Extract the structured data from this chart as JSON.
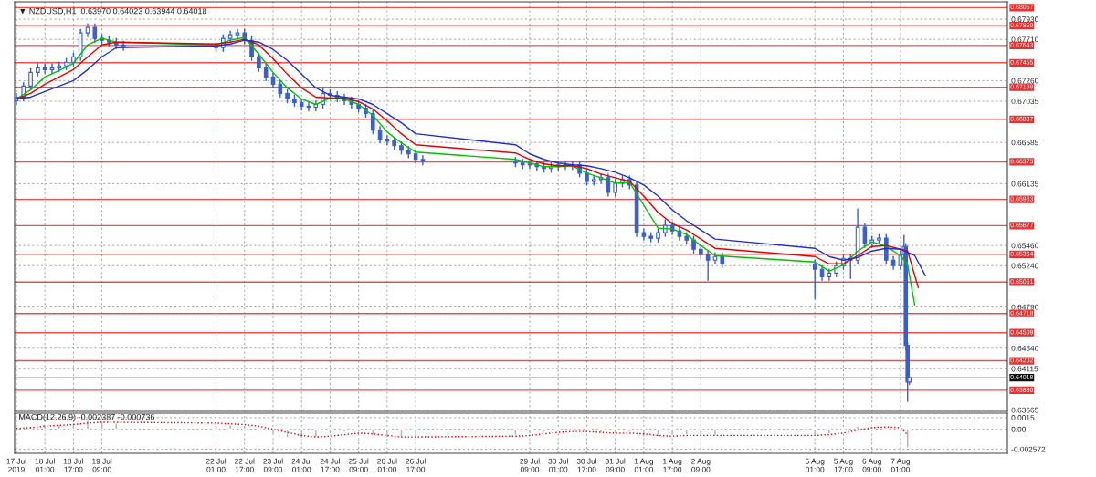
{
  "chart_data": [
    {
      "type": "candlestick",
      "title": "▼ NZDUSD,H1  0.63970 0.64023 0.63944 0.64018",
      "tick_labels": "y",
      "grid": true,
      "x": [
        "2019-07-17T09:00",
        "2019-07-17T13:00",
        "2019-07-17T17:00",
        "2019-07-17T21:00",
        "2019-07-18T01:00",
        "2019-07-18T05:00",
        "2019-07-18T09:00",
        "2019-07-18T13:00",
        "2019-07-18T17:00",
        "2019-07-18T21:00",
        "2019-07-19T01:00",
        "2019-07-19T05:00",
        "2019-07-19T09:00",
        "2019-07-19T13:00",
        "2019-07-19T17:00",
        "2019-07-19T21:00",
        "2019-07-22T01:00",
        "2019-07-22T05:00",
        "2019-07-22T09:00",
        "2019-07-22T13:00",
        "2019-07-22T17:00",
        "2019-07-22T21:00",
        "2019-07-23T01:00",
        "2019-07-23T05:00",
        "2019-07-23T09:00",
        "2019-07-23T13:00",
        "2019-07-23T17:00",
        "2019-07-23T21:00",
        "2019-07-24T01:00",
        "2019-07-24T05:00",
        "2019-07-24T09:00",
        "2019-07-24T13:00",
        "2019-07-24T17:00",
        "2019-07-24T21:00",
        "2019-07-25T01:00",
        "2019-07-25T05:00",
        "2019-07-25T09:00",
        "2019-07-25T13:00",
        "2019-07-25T17:00",
        "2019-07-25T21:00",
        "2019-07-26T01:00",
        "2019-07-26T05:00",
        "2019-07-26T09:00",
        "2019-07-26T13:00",
        "2019-07-26T17:00",
        "2019-07-26T21:00",
        "2019-07-29T01:00",
        "2019-07-29T05:00",
        "2019-07-29T09:00",
        "2019-07-29T13:00",
        "2019-07-29T17:00",
        "2019-07-29T21:00",
        "2019-07-30T01:00",
        "2019-07-30T05:00",
        "2019-07-30T09:00",
        "2019-07-30T13:00",
        "2019-07-30T17:00",
        "2019-07-30T21:00",
        "2019-07-31T01:00",
        "2019-07-31T05:00",
        "2019-07-31T09:00",
        "2019-07-31T13:00",
        "2019-07-31T17:00",
        "2019-07-31T21:00",
        "2019-08-01T01:00",
        "2019-08-01T05:00",
        "2019-08-01T09:00",
        "2019-08-01T13:00",
        "2019-08-01T17:00",
        "2019-08-01T21:00",
        "2019-08-02T01:00",
        "2019-08-02T05:00",
        "2019-08-02T09:00",
        "2019-08-02T13:00",
        "2019-08-02T17:00",
        "2019-08-02T21:00",
        "2019-08-05T01:00",
        "2019-08-05T05:00",
        "2019-08-05T09:00",
        "2019-08-05T13:00",
        "2019-08-05T17:00",
        "2019-08-05T21:00",
        "2019-08-06T01:00",
        "2019-08-06T05:00",
        "2019-08-06T09:00",
        "2019-08-06T13:00",
        "2019-08-06T17:00",
        "2019-08-06T21:00",
        "2019-08-07T01:00",
        "2019-08-07T03:00",
        "2019-08-07T04:00",
        "2019-08-07T05:00",
        "2019-08-07T06:00"
      ],
      "ohlc": [
        [
          0.6704,
          0.6712,
          0.67,
          0.6708
        ],
        [
          0.6708,
          0.6724,
          0.6704,
          0.672
        ],
        [
          0.672,
          0.6739,
          0.6716,
          0.6735
        ],
        [
          0.6735,
          0.6744,
          0.6731,
          0.674
        ],
        [
          0.674,
          0.6744,
          0.6734,
          0.6738
        ],
        [
          0.6738,
          0.6744,
          0.6734,
          0.674
        ],
        [
          0.674,
          0.6746,
          0.6736,
          0.6742
        ],
        [
          0.6742,
          0.675,
          0.6738,
          0.6746
        ],
        [
          0.6746,
          0.6756,
          0.6742,
          0.6752
        ],
        [
          0.6752,
          0.6782,
          0.6748,
          0.6778
        ],
        [
          0.6778,
          0.6788,
          0.6774,
          0.6784
        ],
        [
          0.6784,
          0.6788,
          0.6768,
          0.6772
        ],
        [
          0.6772,
          0.6776,
          0.6766,
          0.677
        ],
        [
          0.677,
          0.6774,
          0.6764,
          0.6768
        ],
        [
          0.6768,
          0.6772,
          0.6761,
          0.6765
        ],
        [
          0.6765,
          0.6769,
          0.6759,
          0.6763
        ],
        [
          0.6763,
          0.6767,
          0.6758,
          0.6762
        ],
        [
          0.6762,
          0.6776,
          0.6758,
          0.6772
        ],
        [
          0.6772,
          0.678,
          0.6768,
          0.6776
        ],
        [
          0.6776,
          0.6782,
          0.6772,
          0.6778
        ],
        [
          0.6778,
          0.6782,
          0.6766,
          0.677
        ],
        [
          0.677,
          0.6774,
          0.6748,
          0.6752
        ],
        [
          0.6752,
          0.6756,
          0.6736,
          0.674
        ],
        [
          0.674,
          0.6744,
          0.6726,
          0.673
        ],
        [
          0.673,
          0.6734,
          0.6718,
          0.6722
        ],
        [
          0.6722,
          0.6726,
          0.6708,
          0.6712
        ],
        [
          0.6712,
          0.6716,
          0.6702,
          0.6706
        ],
        [
          0.6706,
          0.671,
          0.6698,
          0.6702
        ],
        [
          0.6702,
          0.6706,
          0.6694,
          0.6698
        ],
        [
          0.6698,
          0.6702,
          0.6693,
          0.6697
        ],
        [
          0.6697,
          0.6704,
          0.6693,
          0.67
        ],
        [
          0.67,
          0.6718,
          0.6696,
          0.6712
        ],
        [
          0.6712,
          0.6716,
          0.6706,
          0.671
        ],
        [
          0.671,
          0.6714,
          0.6703,
          0.6707
        ],
        [
          0.6707,
          0.6711,
          0.67,
          0.6704
        ],
        [
          0.6704,
          0.6708,
          0.6696,
          0.67
        ],
        [
          0.67,
          0.6704,
          0.6692,
          0.6696
        ],
        [
          0.6696,
          0.67,
          0.6686,
          0.669
        ],
        [
          0.669,
          0.6694,
          0.6668,
          0.6672
        ],
        [
          0.6672,
          0.6676,
          0.6658,
          0.6662
        ],
        [
          0.6662,
          0.6666,
          0.6656,
          0.666
        ],
        [
          0.666,
          0.6664,
          0.6651,
          0.6655
        ],
        [
          0.6655,
          0.6659,
          0.6646,
          0.665
        ],
        [
          0.665,
          0.6654,
          0.6642,
          0.6646
        ],
        [
          0.6646,
          0.665,
          0.6636,
          0.664
        ],
        [
          0.664,
          0.6644,
          0.6634,
          0.6638
        ],
        [
          0.6638,
          0.6642,
          0.6632,
          0.6636
        ],
        [
          0.6636,
          0.664,
          0.663,
          0.6634
        ],
        [
          0.6634,
          0.6638,
          0.663,
          0.6635
        ],
        [
          0.6635,
          0.6638,
          0.6628,
          0.6632
        ],
        [
          0.6632,
          0.6636,
          0.6626,
          0.663
        ],
        [
          0.663,
          0.6636,
          0.6626,
          0.6632
        ],
        [
          0.6632,
          0.6638,
          0.6628,
          0.6634
        ],
        [
          0.6634,
          0.6638,
          0.6629,
          0.6633
        ],
        [
          0.6633,
          0.6638,
          0.6629,
          0.6634
        ],
        [
          0.6634,
          0.6638,
          0.6621,
          0.6625
        ],
        [
          0.6625,
          0.6629,
          0.6612,
          0.6616
        ],
        [
          0.6616,
          0.6622,
          0.6612,
          0.6618
        ],
        [
          0.6618,
          0.6624,
          0.6614,
          0.662
        ],
        [
          0.662,
          0.6624,
          0.66,
          0.6604
        ],
        [
          0.6604,
          0.6618,
          0.66,
          0.6614
        ],
        [
          0.6614,
          0.6622,
          0.661,
          0.6618
        ],
        [
          0.6618,
          0.6622,
          0.6608,
          0.6612
        ],
        [
          0.6612,
          0.6616,
          0.6556,
          0.656
        ],
        [
          0.656,
          0.6564,
          0.6552,
          0.6556
        ],
        [
          0.6556,
          0.656,
          0.655,
          0.6554
        ],
        [
          0.6554,
          0.6564,
          0.655,
          0.656
        ],
        [
          0.656,
          0.6574,
          0.6556,
          0.6568
        ],
        [
          0.6568,
          0.6572,
          0.6558,
          0.6562
        ],
        [
          0.6562,
          0.6566,
          0.6552,
          0.6556
        ],
        [
          0.6556,
          0.656,
          0.6548,
          0.6552
        ],
        [
          0.6552,
          0.6556,
          0.6538,
          0.6542
        ],
        [
          0.6542,
          0.6546,
          0.6532,
          0.6536
        ],
        [
          0.6536,
          0.654,
          0.6508,
          0.653
        ],
        [
          0.653,
          0.6538,
          0.6526,
          0.6534
        ],
        [
          0.6534,
          0.6538,
          0.6522,
          0.6526
        ],
        [
          0.6526,
          0.653,
          0.6488,
          0.652
        ],
        [
          0.652,
          0.6524,
          0.6508,
          0.6512
        ],
        [
          0.6512,
          0.652,
          0.6508,
          0.6516
        ],
        [
          0.6516,
          0.6528,
          0.6512,
          0.6524
        ],
        [
          0.6524,
          0.6536,
          0.652,
          0.6532
        ],
        [
          0.6532,
          0.6536,
          0.651,
          0.653
        ],
        [
          0.653,
          0.6586,
          0.6526,
          0.6566
        ],
        [
          0.6566,
          0.657,
          0.6544,
          0.6548
        ],
        [
          0.6548,
          0.6556,
          0.6544,
          0.6552
        ],
        [
          0.6552,
          0.6558,
          0.6548,
          0.6554
        ],
        [
          0.6554,
          0.6558,
          0.6526,
          0.653
        ],
        [
          0.653,
          0.6534,
          0.652,
          0.6524
        ],
        [
          0.6524,
          0.654,
          0.652,
          0.6536
        ],
        [
          0.6536,
          0.6557,
          0.6532,
          0.6545
        ],
        [
          0.6545,
          0.6548,
          0.6432,
          0.6437
        ],
        [
          0.6437,
          0.644,
          0.6376,
          0.6397
        ],
        [
          0.6397,
          0.64023,
          0.63944,
          0.64018
        ]
      ],
      "series": [
        {
          "type": "line",
          "color": "#00c000",
          "x": [
            "2019-07-17T09:00",
            "2019-07-17T17:00",
            "2019-07-18T01:00",
            "2019-07-18T09:00",
            "2019-07-18T17:00",
            "2019-07-19T01:00",
            "2019-07-19T09:00",
            "2019-07-19T17:00",
            "2019-07-22T01:00",
            "2019-07-22T09:00",
            "2019-07-22T17:00",
            "2019-07-23T01:00",
            "2019-07-23T09:00",
            "2019-07-23T17:00",
            "2019-07-24T01:00",
            "2019-07-24T09:00",
            "2019-07-24T17:00",
            "2019-07-25T01:00",
            "2019-07-25T09:00",
            "2019-07-25T17:00",
            "2019-07-26T01:00",
            "2019-07-26T09:00",
            "2019-07-26T17:00",
            "2019-07-29T01:00",
            "2019-07-29T09:00",
            "2019-07-29T17:00",
            "2019-07-30T01:00",
            "2019-07-30T09:00",
            "2019-07-30T17:00",
            "2019-07-31T01:00",
            "2019-07-31T09:00",
            "2019-07-31T17:00",
            "2019-08-01T01:00",
            "2019-08-01T09:00",
            "2019-08-01T17:00",
            "2019-08-02T01:00",
            "2019-08-02T09:00",
            "2019-08-02T17:00",
            "2019-08-05T01:00",
            "2019-08-05T09:00",
            "2019-08-05T17:00",
            "2019-08-06T01:00",
            "2019-08-06T09:00",
            "2019-08-06T17:00",
            "2019-08-07T01:00",
            "2019-08-07T05:00",
            "2019-08-07T09:00"
          ],
          "values": [
            0.6706,
            0.6716,
            0.673,
            0.6737,
            0.6745,
            0.6765,
            0.6772,
            0.6768,
            0.6765,
            0.677,
            0.6773,
            0.6755,
            0.6735,
            0.6718,
            0.6706,
            0.67,
            0.6707,
            0.6706,
            0.67,
            0.6688,
            0.667,
            0.6658,
            0.6648,
            0.664,
            0.6636,
            0.6632,
            0.6632,
            0.6633,
            0.6625,
            0.662,
            0.6614,
            0.6615,
            0.659,
            0.6565,
            0.6564,
            0.6558,
            0.6546,
            0.6535,
            0.6528,
            0.6518,
            0.6525,
            0.654,
            0.655,
            0.6545,
            0.6535,
            0.6525,
            0.6481
          ]
        },
        {
          "type": "line",
          "color": "#e00000",
          "x": [
            "2019-07-17T09:00",
            "2019-07-17T17:00",
            "2019-07-18T01:00",
            "2019-07-18T09:00",
            "2019-07-18T17:00",
            "2019-07-19T01:00",
            "2019-07-19T09:00",
            "2019-07-19T17:00",
            "2019-07-22T01:00",
            "2019-07-22T09:00",
            "2019-07-22T17:00",
            "2019-07-23T01:00",
            "2019-07-23T09:00",
            "2019-07-23T17:00",
            "2019-07-24T01:00",
            "2019-07-24T09:00",
            "2019-07-24T17:00",
            "2019-07-25T01:00",
            "2019-07-25T09:00",
            "2019-07-25T17:00",
            "2019-07-26T01:00",
            "2019-07-26T09:00",
            "2019-07-26T17:00",
            "2019-07-29T01:00",
            "2019-07-29T09:00",
            "2019-07-29T17:00",
            "2019-07-30T01:00",
            "2019-07-30T09:00",
            "2019-07-30T17:00",
            "2019-07-31T01:00",
            "2019-07-31T09:00",
            "2019-07-31T17:00",
            "2019-08-01T01:00",
            "2019-08-01T09:00",
            "2019-08-01T17:00",
            "2019-08-02T01:00",
            "2019-08-02T09:00",
            "2019-08-02T17:00",
            "2019-08-05T01:00",
            "2019-08-05T09:00",
            "2019-08-05T17:00",
            "2019-08-06T01:00",
            "2019-08-06T09:00",
            "2019-08-06T17:00",
            "2019-08-07T01:00",
            "2019-08-07T05:00",
            "2019-08-07T11:00"
          ],
          "values": [
            0.6706,
            0.6712,
            0.6722,
            0.673,
            0.6738,
            0.6752,
            0.6765,
            0.6768,
            0.6766,
            0.6768,
            0.6771,
            0.6765,
            0.675,
            0.6733,
            0.6718,
            0.6708,
            0.6707,
            0.6707,
            0.6703,
            0.6695,
            0.6682,
            0.6668,
            0.6656,
            0.6647,
            0.664,
            0.6635,
            0.6633,
            0.6633,
            0.663,
            0.6624,
            0.662,
            0.6616,
            0.66,
            0.6582,
            0.657,
            0.6563,
            0.6553,
            0.6543,
            0.6534,
            0.6526,
            0.6526,
            0.6535,
            0.6545,
            0.6546,
            0.6542,
            0.654,
            0.65
          ]
        },
        {
          "type": "line",
          "color": "#2030d0",
          "x": [
            "2019-07-17T09:00",
            "2019-07-17T17:00",
            "2019-07-18T01:00",
            "2019-07-18T09:00",
            "2019-07-18T17:00",
            "2019-07-19T01:00",
            "2019-07-19T09:00",
            "2019-07-19T17:00",
            "2019-07-22T01:00",
            "2019-07-22T09:00",
            "2019-07-22T17:00",
            "2019-07-23T01:00",
            "2019-07-23T09:00",
            "2019-07-23T17:00",
            "2019-07-24T01:00",
            "2019-07-24T09:00",
            "2019-07-24T17:00",
            "2019-07-25T01:00",
            "2019-07-25T09:00",
            "2019-07-25T17:00",
            "2019-07-26T01:00",
            "2019-07-26T09:00",
            "2019-07-26T17:00",
            "2019-07-29T01:00",
            "2019-07-29T09:00",
            "2019-07-29T17:00",
            "2019-07-30T01:00",
            "2019-07-30T09:00",
            "2019-07-30T17:00",
            "2019-07-31T01:00",
            "2019-07-31T09:00",
            "2019-07-31T17:00",
            "2019-08-01T01:00",
            "2019-08-01T09:00",
            "2019-08-01T17:00",
            "2019-08-02T01:00",
            "2019-08-02T09:00",
            "2019-08-02T17:00",
            "2019-08-05T01:00",
            "2019-08-05T09:00",
            "2019-08-05T17:00",
            "2019-08-06T01:00",
            "2019-08-06T09:00",
            "2019-08-06T17:00",
            "2019-08-07T01:00",
            "2019-08-07T09:00",
            "2019-08-07T15:00"
          ],
          "values": [
            0.6706,
            0.6708,
            0.6714,
            0.672,
            0.6726,
            0.6738,
            0.6752,
            0.6762,
            0.6764,
            0.6766,
            0.677,
            0.6768,
            0.676,
            0.6748,
            0.6733,
            0.6718,
            0.671,
            0.6708,
            0.6706,
            0.67,
            0.669,
            0.668,
            0.6668,
            0.6656,
            0.6646,
            0.664,
            0.6636,
            0.6634,
            0.6633,
            0.663,
            0.6626,
            0.662,
            0.6612,
            0.66,
            0.6585,
            0.6573,
            0.6563,
            0.6553,
            0.6543,
            0.6534,
            0.653,
            0.6533,
            0.654,
            0.6543,
            0.6542,
            0.6535,
            0.6513
          ]
        }
      ],
      "xlim": [
        "2019-07-17T08:00",
        "2019-08-09T13:00"
      ],
      "xticks": [
        {
          "value": "2019-07-17T09:00",
          "label": null
        },
        {
          "value": "2019-07-18T01:00",
          "label": null
        },
        {
          "value": "2019-07-18T17:00",
          "label": null
        },
        {
          "value": "2019-07-19T09:00",
          "label": null
        },
        {
          "value": "2019-07-22T01:00",
          "label": null
        },
        {
          "value": "2019-07-22T17:00",
          "label": null
        },
        {
          "value": "2019-07-23T09:00",
          "label": null
        },
        {
          "value": "2019-07-24T01:00",
          "label": null
        },
        {
          "value": "2019-07-24T17:00",
          "label": null
        },
        {
          "value": "2019-07-25T09:00",
          "label": null
        },
        {
          "value": "2019-07-26T01:00",
          "label": null
        },
        {
          "value": "2019-07-26T17:00",
          "label": null
        },
        {
          "value": "2019-07-29T09:00",
          "label": null
        },
        {
          "value": "2019-07-30T01:00",
          "label": null
        },
        {
          "value": "2019-07-30T17:00",
          "label": null
        },
        {
          "value": "2019-07-31T09:00",
          "label": null
        },
        {
          "value": "2019-08-01T01:00",
          "label": null
        },
        {
          "value": "2019-08-01T17:00",
          "label": null
        },
        {
          "value": "2019-08-02T09:00",
          "label": null
        },
        {
          "value": "2019-08-05T01:00",
          "label": null
        },
        {
          "value": "2019-08-05T17:00",
          "label": null
        },
        {
          "value": "2019-08-06T09:00",
          "label": null
        },
        {
          "value": "2019-08-07T01:00",
          "label": null
        }
      ],
      "ylim": [
        0.6365,
        0.6812
      ],
      "yticks": [
        {
          "value": 0.6793,
          "label": "0.67930"
        },
        {
          "value": 0.6771,
          "label": "0.67710"
        },
        {
          "value": 0.6726,
          "label": "0.67260"
        },
        0.67035,
        0.66585,
        0.66135,
        {
          "value": 0.6546,
          "label": "0.65460"
        },
        {
          "value": 0.6524,
          "label": "0.65240"
        },
        {
          "value": 0.6479,
          "label": "0.64790"
        },
        {
          "value": 0.6434,
          "label": "0.64340"
        },
        0.64115,
        0.63665
      ],
      "ref_lines": [
        {
          "axis": "y",
          "value": 0.68057,
          "label": "0.68057",
          "color": "#e83030"
        },
        {
          "axis": "y",
          "value": 0.67859,
          "label": "0.67859",
          "color": "#e83030"
        },
        {
          "axis": "y",
          "value": 0.67643,
          "label": "0.67643",
          "color": "#e83030"
        },
        {
          "axis": "y",
          "value": 0.67455,
          "label": "0.67455",
          "color": "#e83030"
        },
        {
          "axis": "y",
          "value": 0.67188,
          "label": "0.67188",
          "color": "#e83030"
        },
        {
          "axis": "y",
          "value": 0.66837,
          "label": "0.66837",
          "color": "#e83030"
        },
        {
          "axis": "y",
          "value": 0.66373,
          "label": "0.66373",
          "color": "#e83030"
        },
        {
          "axis": "y",
          "value": 0.65963,
          "label": "0.65963",
          "color": "#e83030"
        },
        {
          "axis": "y",
          "value": 0.65677,
          "label": "0.65677",
          "color": "#e83030"
        },
        {
          "axis": "y",
          "value": 0.65364,
          "label": "0.65364",
          "color": "#e83030"
        },
        {
          "axis": "y",
          "value": 0.65061,
          "label": "0.65061",
          "color": "#e83030"
        },
        {
          "axis": "y",
          "value": 0.64718,
          "label": "0.64718",
          "color": "#e83030"
        },
        {
          "axis": "y",
          "value": 0.64509,
          "label": "0.64509",
          "color": "#e83030"
        },
        {
          "axis": "y",
          "value": 0.64202,
          "label": "0.64202",
          "color": "#e83030"
        },
        {
          "axis": "y",
          "value": 0.64018,
          "label": "0.64018",
          "color": "#101010"
        },
        {
          "axis": "y",
          "value": 0.6388,
          "label": "0.63880",
          "color": "#e83030"
        }
      ]
    },
    {
      "type": "bar",
      "title": "MACD(12,26,9) -0.002387 -0.000736",
      "grid": true,
      "series": [
        {
          "type": "bar",
          "color": "#b8b8b8",
          "x": [
            "2019-07-17T09:00",
            "2019-07-17T17:00",
            "2019-07-18T01:00",
            "2019-07-18T09:00",
            "2019-07-18T17:00",
            "2019-07-19T01:00",
            "2019-07-19T09:00",
            "2019-07-19T17:00",
            "2019-07-22T01:00",
            "2019-07-22T09:00",
            "2019-07-22T17:00",
            "2019-07-23T01:00",
            "2019-07-23T09:00",
            "2019-07-23T17:00",
            "2019-07-24T01:00",
            "2019-07-24T09:00",
            "2019-07-24T17:00",
            "2019-07-25T01:00",
            "2019-07-25T09:00",
            "2019-07-25T17:00",
            "2019-07-26T01:00",
            "2019-07-26T09:00",
            "2019-07-26T17:00",
            "2019-07-29T01:00",
            "2019-07-29T09:00",
            "2019-07-29T17:00",
            "2019-07-30T01:00",
            "2019-07-30T09:00",
            "2019-07-30T17:00",
            "2019-07-31T01:00",
            "2019-07-31T09:00",
            "2019-07-31T17:00",
            "2019-08-01T01:00",
            "2019-08-01T09:00",
            "2019-08-01T17:00",
            "2019-08-02T01:00",
            "2019-08-02T09:00",
            "2019-08-02T17:00",
            "2019-08-05T01:00",
            "2019-08-05T09:00",
            "2019-08-05T17:00",
            "2019-08-06T01:00",
            "2019-08-06T09:00",
            "2019-08-06T17:00",
            "2019-08-07T01:00",
            "2019-08-07T05:00"
          ],
          "values": [
            0.0002,
            0.0004,
            0.0006,
            0.0006,
            0.0008,
            0.0012,
            0.0011,
            0.0008,
            0.0005,
            0.0006,
            0.0005,
            -0.0002,
            -0.0008,
            -0.0011,
            -0.0012,
            -0.001,
            -0.0006,
            -0.0004,
            -0.0004,
            -0.0008,
            -0.0011,
            -0.0011,
            -0.001,
            -0.0008,
            -0.0006,
            -0.0004,
            -0.0003,
            -0.0002,
            -0.0004,
            -0.0005,
            -0.0006,
            -0.0004,
            -0.001,
            -0.001,
            -0.0008,
            -0.0007,
            -0.0008,
            -0.0008,
            -0.0008,
            -0.0006,
            -0.0002,
            0.0004,
            0.0004,
            0.0002,
            -0.0001,
            -0.0024
          ]
        },
        {
          "type": "line",
          "color": "#e00000",
          "line_style": "dotted",
          "x": [
            "2019-07-17T09:00",
            "2019-07-17T17:00",
            "2019-07-18T01:00",
            "2019-07-18T09:00",
            "2019-07-18T17:00",
            "2019-07-19T01:00",
            "2019-07-19T09:00",
            "2019-07-19T17:00",
            "2019-07-22T01:00",
            "2019-07-22T09:00",
            "2019-07-22T17:00",
            "2019-07-23T01:00",
            "2019-07-23T09:00",
            "2019-07-23T17:00",
            "2019-07-24T01:00",
            "2019-07-24T09:00",
            "2019-07-24T17:00",
            "2019-07-25T01:00",
            "2019-07-25T09:00",
            "2019-07-25T17:00",
            "2019-07-26T01:00",
            "2019-07-26T09:00",
            "2019-07-26T17:00",
            "2019-07-29T01:00",
            "2019-07-29T09:00",
            "2019-07-29T17:00",
            "2019-07-30T01:00",
            "2019-07-30T09:00",
            "2019-07-30T17:00",
            "2019-07-31T01:00",
            "2019-07-31T09:00",
            "2019-07-31T17:00",
            "2019-08-01T01:00",
            "2019-08-01T09:00",
            "2019-08-01T17:00",
            "2019-08-02T01:00",
            "2019-08-02T09:00",
            "2019-08-02T17:00",
            "2019-08-05T01:00",
            "2019-08-05T09:00",
            "2019-08-05T17:00",
            "2019-08-06T01:00",
            "2019-08-06T09:00",
            "2019-08-06T17:00",
            "2019-08-07T01:00",
            "2019-08-07T05:00"
          ],
          "values": [
            0.0001,
            0.0002,
            0.0004,
            0.0005,
            0.0006,
            0.0008,
            0.0009,
            0.0009,
            0.0008,
            0.0007,
            0.0006,
            0.0004,
            0.0,
            -0.0004,
            -0.0008,
            -0.001,
            -0.0009,
            -0.0007,
            -0.0005,
            -0.0006,
            -0.0008,
            -0.001,
            -0.001,
            -0.0009,
            -0.0008,
            -0.0006,
            -0.0004,
            -0.0003,
            -0.0003,
            -0.0004,
            -0.0005,
            -0.0005,
            -0.0006,
            -0.0008,
            -0.0009,
            -0.0008,
            -0.0008,
            -0.0008,
            -0.0008,
            -0.0007,
            -0.0005,
            -0.0001,
            0.0002,
            0.0003,
            0.0002,
            -0.0007
          ]
        }
      ],
      "xlim": [
        "2019-07-17T08:00",
        "2019-08-09T13:00"
      ],
      "xticks": [
        {
          "value": "2019-07-17T09:00",
          "label": "17 Jul 2019"
        },
        {
          "value": "2019-07-18T01:00",
          "label": "18 Jul 01:00"
        },
        {
          "value": "2019-07-18T17:00",
          "label": "18 Jul 17:00"
        },
        {
          "value": "2019-07-19T09:00",
          "label": "19 Jul 09:00"
        },
        {
          "value": "2019-07-22T01:00",
          "label": "22 Jul 01:00"
        },
        {
          "value": "2019-07-22T17:00",
          "label": "22 Jul 17:00"
        },
        {
          "value": "2019-07-23T09:00",
          "label": "23 Jul 09:00"
        },
        {
          "value": "2019-07-24T01:00",
          "label": "24 Jul 01:00"
        },
        {
          "value": "2019-07-24T17:00",
          "label": "24 Jul 17:00"
        },
        {
          "value": "2019-07-25T09:00",
          "label": "25 Jul 09:00"
        },
        {
          "value": "2019-07-26T01:00",
          "label": "26 Jul 01:00"
        },
        {
          "value": "2019-07-26T17:00",
          "label": "26 Jul 17:00"
        },
        {
          "value": "2019-07-29T09:00",
          "label": "29 Jul 09:00"
        },
        {
          "value": "2019-07-30T01:00",
          "label": "30 Jul 01:00"
        },
        {
          "value": "2019-07-30T17:00",
          "label": "30 Jul 17:00"
        },
        {
          "value": "2019-07-31T09:00",
          "label": "31 Jul 09:00"
        },
        {
          "value": "2019-08-01T01:00",
          "label": "1 Aug 01:00"
        },
        {
          "value": "2019-08-01T17:00",
          "label": "1 Aug 17:00"
        },
        {
          "value": "2019-08-02T09:00",
          "label": "2 Aug 09:00"
        },
        {
          "value": "2019-08-05T01:00",
          "label": "5 Aug 01:00"
        },
        {
          "value": "2019-08-05T17:00",
          "label": "5 Aug 17:00"
        },
        {
          "value": "2019-08-06T09:00",
          "label": "6 Aug 09:00"
        },
        {
          "value": "2019-08-07T01:00",
          "label": "7 Aug 01:00"
        }
      ],
      "ylim": [
        -0.00311,
        0.00208
      ],
      "yticks": [
        0.0015,
        {
          "value": 0,
          "label": "0.00"
        },
        -0.002572
      ]
    }
  ]
}
